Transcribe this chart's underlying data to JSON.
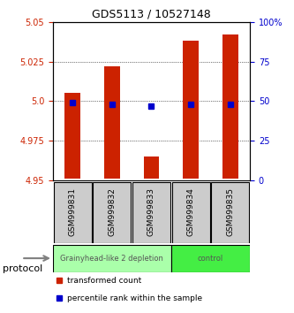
{
  "title": "GDS5113 / 10527148",
  "samples": [
    "GSM999831",
    "GSM999832",
    "GSM999833",
    "GSM999834",
    "GSM999835"
  ],
  "transformed_count_top": [
    5.005,
    5.022,
    4.965,
    5.038,
    5.042
  ],
  "transformed_count_bottom": [
    4.951,
    4.951,
    4.951,
    4.951,
    4.951
  ],
  "percentile_rank": [
    49,
    48,
    47,
    48,
    48
  ],
  "ylim_left": [
    4.95,
    5.05
  ],
  "ylim_right": [
    0,
    100
  ],
  "yticks_left": [
    4.95,
    4.975,
    5.0,
    5.025,
    5.05
  ],
  "yticks_right": [
    0,
    25,
    50,
    75,
    100
  ],
  "bar_color": "#cc2200",
  "dot_color": "#0000cc",
  "grid_color": "#000000",
  "left_tick_color": "#cc2200",
  "right_tick_color": "#0000cc",
  "groups": [
    {
      "label": "Grainyhead-like 2 depletion",
      "samples": [
        0,
        1,
        2
      ],
      "color": "#aaffaa"
    },
    {
      "label": "control",
      "samples": [
        3,
        4
      ],
      "color": "#44ee44"
    }
  ],
  "protocol_label": "protocol",
  "legend_red": "transformed count",
  "legend_blue": "percentile rank within the sample",
  "bar_width": 0.4
}
